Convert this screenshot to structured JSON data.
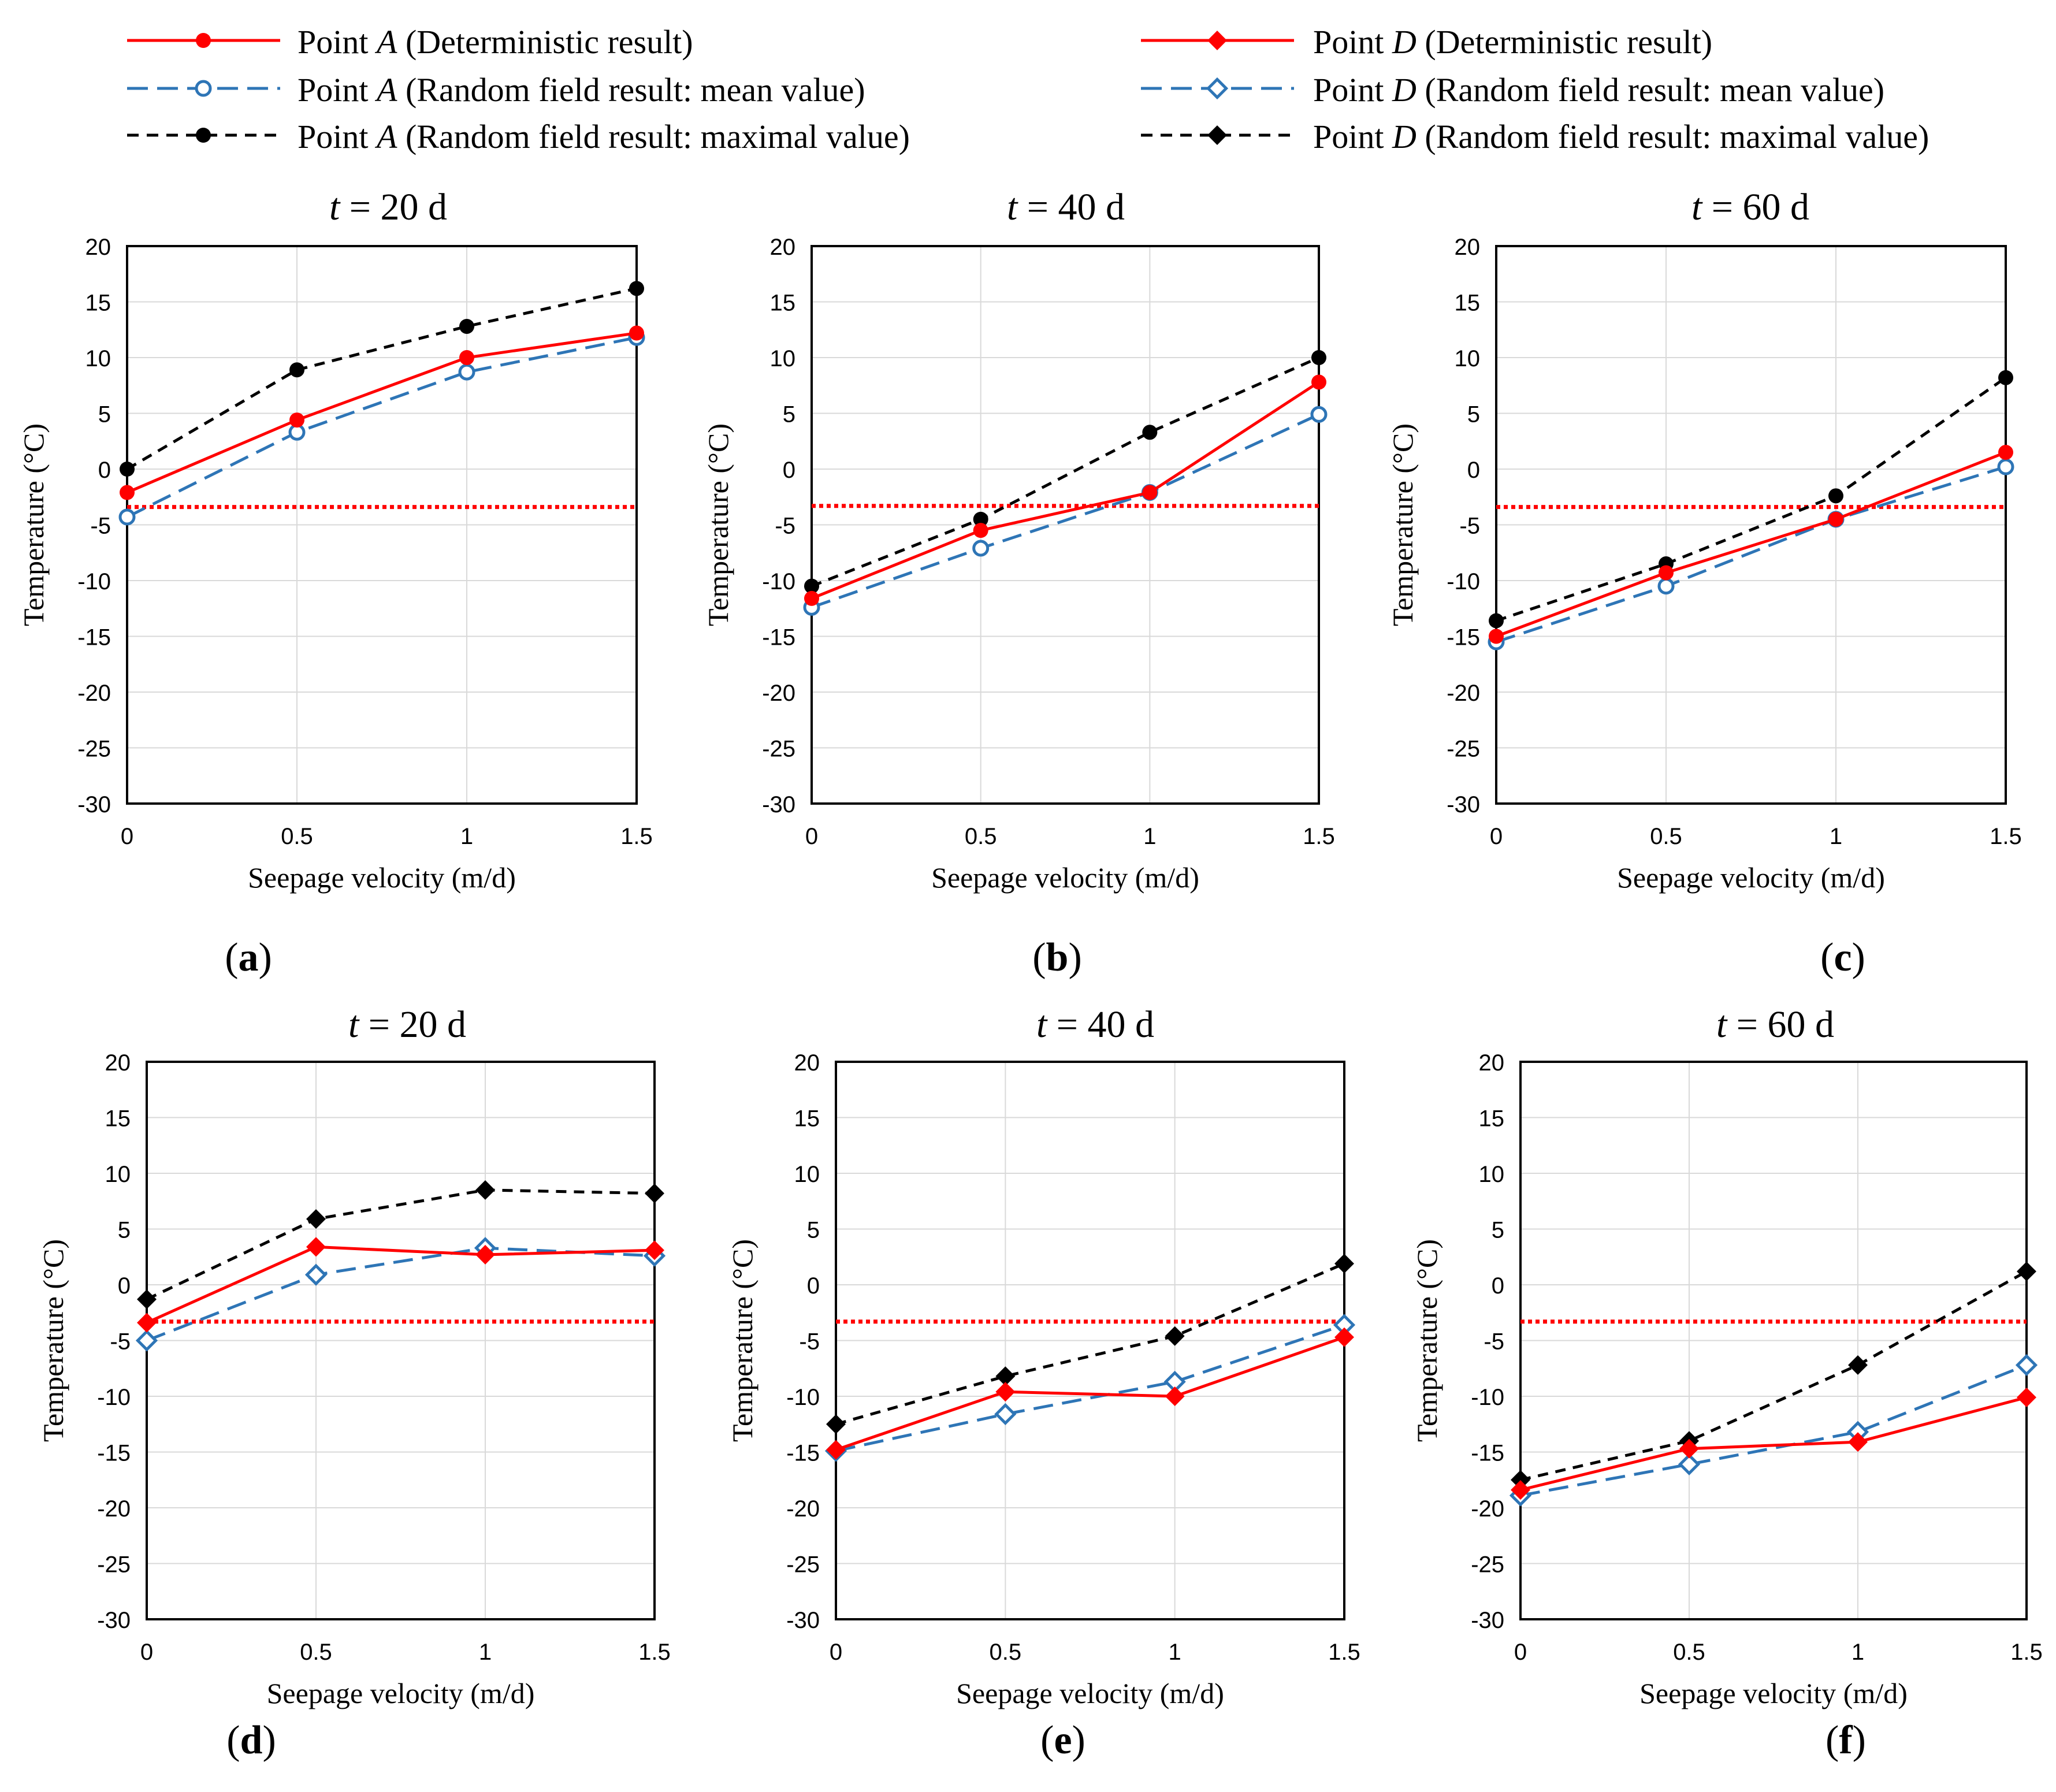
{
  "colors": {
    "deterministic": "#ff0000",
    "mean": "#2e75b6",
    "maximal": "#000000",
    "threshold": "#ff0000",
    "grid": "#d9d9d9",
    "axis": "#000000"
  },
  "legend": {
    "pointA": {
      "label_prefix": "Point ",
      "point": "A",
      "deterministic": "(Deterministic result)",
      "mean": "(Random field result: mean value)",
      "maximal": "(Random field result: maximal value)"
    },
    "pointD": {
      "label_prefix": "Point ",
      "point": "D",
      "deterministic": "(Deterministic result)",
      "mean": "(Random field result: mean value)",
      "maximal": "(Random field result: maximal value)"
    }
  },
  "chart_data": [
    {
      "type": "line",
      "panel_label": "a",
      "title_var": "t",
      "title_rest": " = 20 d",
      "point": "A",
      "marker": "circle",
      "xlabel": "Seepage velocity (m/d)",
      "ylabel": "Temperature (°C)",
      "x": [
        0,
        0.5,
        1,
        1.5
      ],
      "x_tick_labels": [
        "0",
        "0.5",
        "1",
        "1.5"
      ],
      "ylim": [
        -30,
        20
      ],
      "y_ticks": [
        20,
        15,
        10,
        5,
        0,
        -5,
        -10,
        -15,
        -20,
        -25,
        -30
      ],
      "threshold": -3.4,
      "series": [
        {
          "name": "Point A (Deterministic result)",
          "style": "deterministic",
          "values": [
            -2.1,
            4.4,
            10.0,
            12.2
          ]
        },
        {
          "name": "Point A (Random field result: mean value)",
          "style": "mean",
          "values": [
            -4.3,
            3.3,
            8.7,
            11.8
          ]
        },
        {
          "name": "Point A (Random field result: maximal value)",
          "style": "maximal",
          "values": [
            0.0,
            8.9,
            12.8,
            16.2
          ]
        }
      ]
    },
    {
      "type": "line",
      "panel_label": "b",
      "title_var": "t",
      "title_rest": " = 40 d",
      "point": "A",
      "marker": "circle",
      "xlabel": "Seepage velocity (m/d)",
      "ylabel": "Temperature (°C)",
      "x": [
        0,
        0.5,
        1,
        1.5
      ],
      "x_tick_labels": [
        "0",
        "0.5",
        "1",
        "1.5"
      ],
      "ylim": [
        -30,
        20
      ],
      "y_ticks": [
        20,
        15,
        10,
        5,
        0,
        -5,
        -10,
        -15,
        -20,
        -25,
        -30
      ],
      "threshold": -3.3,
      "series": [
        {
          "name": "Point A (Deterministic result)",
          "style": "deterministic",
          "values": [
            -11.6,
            -5.5,
            -2.1,
            7.8
          ]
        },
        {
          "name": "Point A (Random field result: mean value)",
          "style": "mean",
          "values": [
            -12.4,
            -7.1,
            -2.1,
            4.9
          ]
        },
        {
          "name": "Point A (Random field result: maximal value)",
          "style": "maximal",
          "values": [
            -10.5,
            -4.5,
            3.3,
            10.0
          ]
        }
      ]
    },
    {
      "type": "line",
      "panel_label": "c",
      "title_var": "t",
      "title_rest": " = 60 d",
      "point": "A",
      "marker": "circle",
      "xlabel": "Seepage velocity (m/d)",
      "ylabel": "Temperature (°C)",
      "x": [
        0,
        0.5,
        1,
        1.5
      ],
      "x_tick_labels": [
        "0",
        "0.5",
        "1",
        "1.5"
      ],
      "ylim": [
        -30,
        20
      ],
      "y_ticks": [
        20,
        15,
        10,
        5,
        0,
        -5,
        -10,
        -15,
        -20,
        -25,
        -30
      ],
      "threshold": -3.4,
      "series": [
        {
          "name": "Point A (Deterministic result)",
          "style": "deterministic",
          "values": [
            -15.0,
            -9.3,
            -4.5,
            1.5
          ]
        },
        {
          "name": "Point A (Random field result: mean value)",
          "style": "mean",
          "values": [
            -15.5,
            -10.5,
            -4.5,
            0.2
          ]
        },
        {
          "name": "Point A (Random field result: maximal value)",
          "style": "maximal",
          "values": [
            -13.6,
            -8.5,
            -2.4,
            8.2
          ]
        }
      ]
    },
    {
      "type": "line",
      "panel_label": "d",
      "title_var": "t",
      "title_rest": " = 20 d",
      "point": "D",
      "marker": "diamond",
      "xlabel": "Seepage velocity (m/d)",
      "ylabel": "Temperature (°C)",
      "x": [
        0,
        0.5,
        1,
        1.5
      ],
      "x_tick_labels": [
        "0",
        "0.5",
        "1",
        "1.5"
      ],
      "ylim": [
        -30,
        20
      ],
      "y_ticks": [
        20,
        15,
        10,
        5,
        0,
        -5,
        -10,
        -15,
        -20,
        -25,
        -30
      ],
      "threshold": -3.3,
      "series": [
        {
          "name": "Point D (Deterministic result)",
          "style": "deterministic",
          "values": [
            -3.4,
            3.4,
            2.7,
            3.1
          ]
        },
        {
          "name": "Point D (Random field result: mean value)",
          "style": "mean",
          "values": [
            -5.0,
            0.9,
            3.3,
            2.6
          ]
        },
        {
          "name": "Point D (Random field result: maximal value)",
          "style": "maximal",
          "values": [
            -1.3,
            5.9,
            8.5,
            8.2
          ]
        }
      ]
    },
    {
      "type": "line",
      "panel_label": "e",
      "title_var": "t",
      "title_rest": " = 40 d",
      "point": "D",
      "marker": "diamond",
      "xlabel": "Seepage velocity (m/d)",
      "ylabel": "Temperature (°C)",
      "x": [
        0,
        0.5,
        1,
        1.5
      ],
      "x_tick_labels": [
        "0",
        "0.5",
        "1",
        "1.5"
      ],
      "ylim": [
        -30,
        20
      ],
      "y_ticks": [
        20,
        15,
        10,
        5,
        0,
        -5,
        -10,
        -15,
        -20,
        -25,
        -30
      ],
      "threshold": -3.3,
      "series": [
        {
          "name": "Point D (Deterministic result)",
          "style": "deterministic",
          "values": [
            -14.8,
            -9.6,
            -10.0,
            -4.7
          ]
        },
        {
          "name": "Point D (Random field result: mean value)",
          "style": "mean",
          "values": [
            -14.9,
            -11.6,
            -8.7,
            -3.6
          ]
        },
        {
          "name": "Point D (Random field result: maximal value)",
          "style": "maximal",
          "values": [
            -12.5,
            -8.2,
            -4.6,
            1.9
          ]
        }
      ]
    },
    {
      "type": "line",
      "panel_label": "f",
      "title_var": "t",
      "title_rest": " = 60 d",
      "point": "D",
      "marker": "diamond",
      "xlabel": "Seepage velocity (m/d)",
      "ylabel": "Temperature (°C)",
      "x": [
        0,
        0.5,
        1,
        1.5
      ],
      "x_tick_labels": [
        "0",
        "0.5",
        "1",
        "1.5"
      ],
      "ylim": [
        -30,
        20
      ],
      "y_ticks": [
        20,
        15,
        10,
        5,
        0,
        -5,
        -10,
        -15,
        -20,
        -25,
        -30
      ],
      "threshold": -3.3,
      "series": [
        {
          "name": "Point D (Deterministic result)",
          "style": "deterministic",
          "values": [
            -18.4,
            -14.7,
            -14.1,
            -10.1
          ]
        },
        {
          "name": "Point D (Random field result: mean value)",
          "style": "mean",
          "values": [
            -18.9,
            -16.1,
            -13.2,
            -7.2
          ]
        },
        {
          "name": "Point D (Random field result: maximal value)",
          "style": "maximal",
          "values": [
            -17.5,
            -14.0,
            -7.2,
            1.2
          ]
        }
      ]
    }
  ]
}
